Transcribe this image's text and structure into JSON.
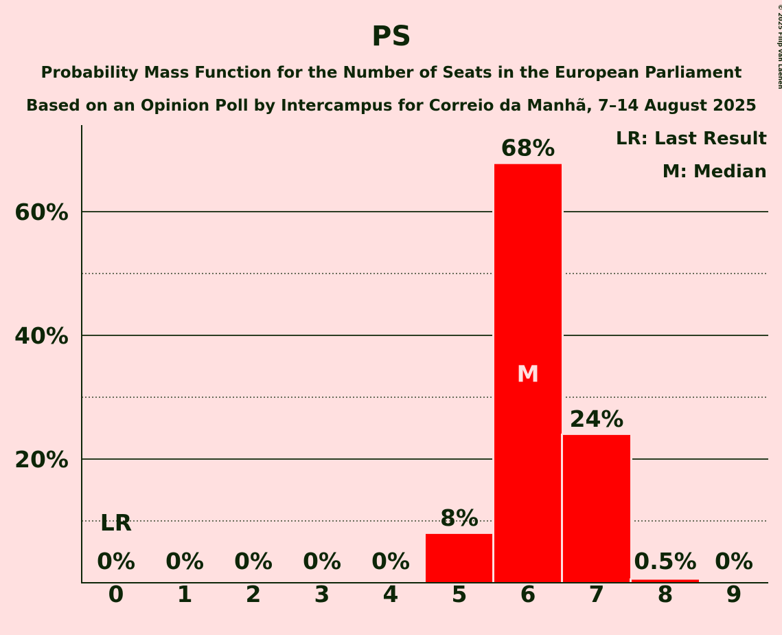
{
  "chart_data": {
    "type": "bar",
    "title": "PS",
    "subtitle_1": "Probability Mass Function for the Number of Seats in the European Parliament",
    "subtitle_2": "Based on an Opinion Poll by Intercampus for Correio da Manhã, 7–14 August 2025",
    "copyright": "© 2025 Filip van Laenen",
    "categories": [
      "0",
      "1",
      "2",
      "3",
      "4",
      "5",
      "6",
      "7",
      "8",
      "9"
    ],
    "values": [
      0,
      0,
      0,
      0,
      0,
      7.9,
      67.7,
      23.9,
      0.5,
      0
    ],
    "value_labels": [
      "0%",
      "0%",
      "0%",
      "0%",
      "0%",
      "8%",
      "68%",
      "24%",
      "0.5%",
      "0%"
    ],
    "ylim": [
      0,
      74
    ],
    "y_major_ticks": [
      20,
      40,
      60
    ],
    "y_major_tick_labels": [
      "20%",
      "40%",
      "60%"
    ],
    "y_minor_gridlines": [
      10,
      30,
      50
    ],
    "last_result": {
      "category": "0",
      "label": "LR"
    },
    "median": {
      "category": "6",
      "label": "M"
    },
    "legend": {
      "position": "top-right",
      "entries": [
        "LR: Last Result",
        "M: Median"
      ]
    },
    "colors": {
      "background": "#FFE0E0",
      "bar": "#FF0000",
      "text": "#0d2608",
      "median_label": "#FFE0E0"
    }
  }
}
